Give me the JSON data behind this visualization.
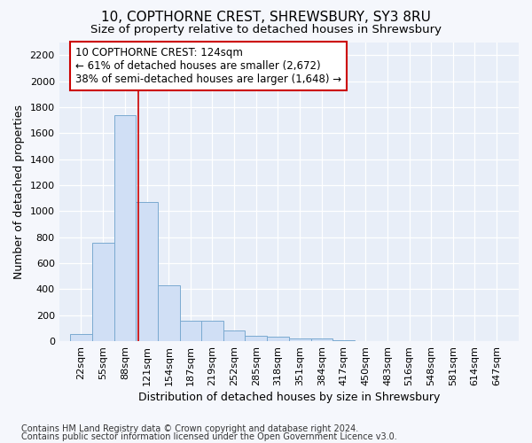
{
  "title": "10, COPTHORNE CREST, SHREWSBURY, SY3 8RU",
  "subtitle": "Size of property relative to detached houses in Shrewsbury",
  "xlabel": "Distribution of detached houses by size in Shrewsbury",
  "ylabel": "Number of detached properties",
  "footnote1": "Contains HM Land Registry data © Crown copyright and database right 2024.",
  "footnote2": "Contains public sector information licensed under the Open Government Licence v3.0.",
  "bar_edges": [
    22,
    55,
    88,
    121,
    154,
    187,
    219,
    252,
    285,
    318,
    351,
    384,
    417,
    450,
    483,
    516,
    548,
    581,
    614,
    647,
    680
  ],
  "bar_heights": [
    55,
    760,
    1740,
    1070,
    430,
    155,
    155,
    80,
    40,
    35,
    25,
    20,
    5,
    0,
    0,
    0,
    0,
    0,
    0,
    0
  ],
  "bar_color": "#d0dff5",
  "bar_edge_color": "#7aaad0",
  "property_line_x": 124,
  "property_line_color": "#cc0000",
  "ylim": [
    0,
    2300
  ],
  "yticks": [
    0,
    200,
    400,
    600,
    800,
    1000,
    1200,
    1400,
    1600,
    1800,
    2000,
    2200
  ],
  "annotation_line1": "10 COPTHORNE CREST: 124sqm",
  "annotation_line2": "← 61% of detached houses are smaller (2,672)",
  "annotation_line3": "38% of semi-detached houses are larger (1,648) →",
  "annotation_box_color": "#cc0000",
  "background_color": "#f5f7fc",
  "plot_bg_color": "#e8eef8",
  "title_fontsize": 11,
  "subtitle_fontsize": 9.5,
  "annotation_fontsize": 8.5,
  "axis_label_fontsize": 9,
  "tick_fontsize": 8,
  "footnote_fontsize": 7
}
